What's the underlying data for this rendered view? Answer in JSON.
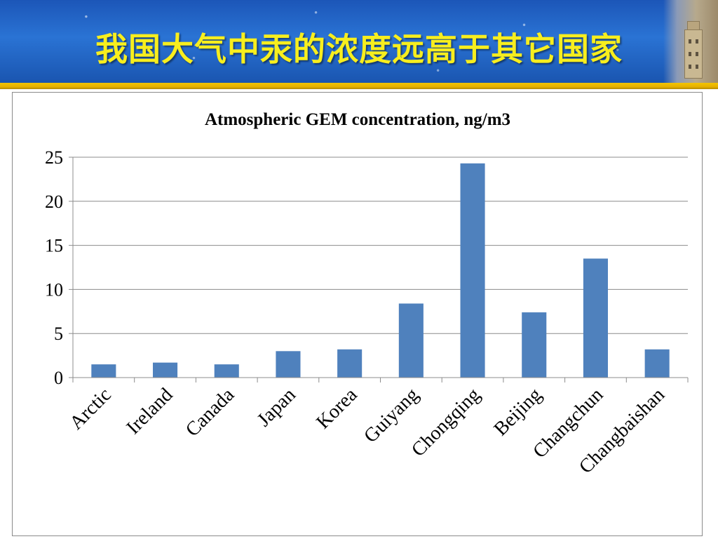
{
  "slide": {
    "title": "我国大气中汞的浓度远高于其它国家"
  },
  "colors": {
    "header_blue": "#2a6fd0",
    "title_yellow": "#f7ee1e",
    "strip_gold": "#f2c400",
    "bar_fill": "#4f81bd",
    "gridline": "#8c8c8c"
  },
  "chart_data": {
    "type": "bar",
    "title": "Atmospheric GEM concentration,  ng/m3",
    "xlabel": "",
    "ylabel": "",
    "categories": [
      "Arctic",
      "Ireland",
      "Canada",
      "Japan",
      "Korea",
      "Guiyang",
      "Chongqing",
      "Beijing",
      "Changchun",
      "Changbaishan"
    ],
    "values": [
      1.5,
      1.7,
      1.5,
      3.0,
      3.2,
      8.4,
      24.3,
      7.4,
      13.5,
      3.2
    ],
    "ylim": [
      0,
      25
    ],
    "yticks": [
      "0",
      "5",
      "10",
      "15",
      "20",
      "25"
    ],
    "grid": true,
    "legend": "none"
  }
}
